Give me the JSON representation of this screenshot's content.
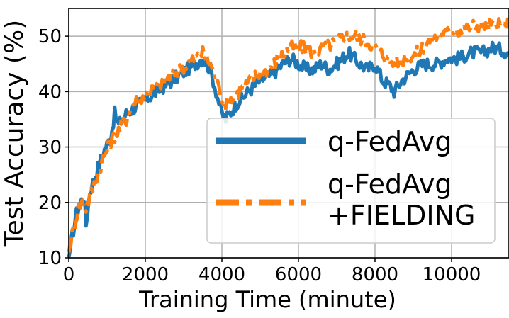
{
  "chart_data": {
    "type": "line",
    "xlabel": "Training Time (minute)",
    "ylabel": "Test Accuracy (%)",
    "xlim": [
      0,
      11500
    ],
    "ylim": [
      10,
      55
    ],
    "xticks": [
      0,
      2000,
      4000,
      6000,
      8000,
      10000
    ],
    "yticks": [
      10,
      20,
      30,
      40,
      50
    ],
    "xtick_labels": [
      "0",
      "2000",
      "4000",
      "6000",
      "8000",
      "10000"
    ],
    "ytick_labels": [
      "10",
      "20",
      "30",
      "40",
      "50"
    ],
    "grid": true,
    "legend_position": "center-right",
    "series": [
      {
        "name": "q-FedAvg",
        "color": "#1f77b4",
        "style": "solid",
        "points": [
          [
            0,
            10
          ],
          [
            50,
            12
          ],
          [
            120,
            15
          ],
          [
            200,
            18
          ],
          [
            300,
            20
          ],
          [
            400,
            21
          ],
          [
            450,
            16
          ],
          [
            550,
            22
          ],
          [
            700,
            25
          ],
          [
            900,
            29
          ],
          [
            1100,
            32
          ],
          [
            1200,
            36
          ],
          [
            1300,
            34
          ],
          [
            1500,
            36
          ],
          [
            1700,
            37
          ],
          [
            1900,
            38
          ],
          [
            2100,
            39
          ],
          [
            2300,
            40
          ],
          [
            2500,
            41
          ],
          [
            2700,
            42
          ],
          [
            2900,
            43
          ],
          [
            3100,
            44
          ],
          [
            3300,
            45
          ],
          [
            3500,
            46
          ],
          [
            3700,
            44
          ],
          [
            3850,
            40
          ],
          [
            4000,
            36
          ],
          [
            4100,
            35
          ],
          [
            4200,
            36
          ],
          [
            4400,
            38
          ],
          [
            4700,
            40
          ],
          [
            5000,
            42
          ],
          [
            5300,
            43
          ],
          [
            5600,
            45
          ],
          [
            5800,
            46
          ],
          [
            6000,
            45
          ],
          [
            6200,
            44
          ],
          [
            6400,
            44
          ],
          [
            6600,
            45
          ],
          [
            6800,
            44
          ],
          [
            7000,
            45
          ],
          [
            7300,
            47
          ],
          [
            7600,
            45
          ],
          [
            7800,
            44
          ],
          [
            8000,
            45
          ],
          [
            8200,
            42
          ],
          [
            8400,
            41
          ],
          [
            8500,
            40
          ],
          [
            8700,
            42
          ],
          [
            9000,
            44
          ],
          [
            9300,
            45
          ],
          [
            9600,
            45
          ],
          [
            9900,
            46
          ],
          [
            10200,
            46
          ],
          [
            10500,
            47
          ],
          [
            10800,
            47
          ],
          [
            11100,
            48
          ],
          [
            11500,
            47
          ]
        ]
      },
      {
        "name": "q-FedAvg\n+FIELDING",
        "color": "#ff7f0e",
        "style": "dashdot",
        "points": [
          [
            0,
            11
          ],
          [
            50,
            13
          ],
          [
            150,
            16
          ],
          [
            250,
            19
          ],
          [
            350,
            20
          ],
          [
            450,
            19
          ],
          [
            550,
            21
          ],
          [
            700,
            24
          ],
          [
            900,
            28
          ],
          [
            1100,
            31
          ],
          [
            1300,
            33
          ],
          [
            1500,
            35
          ],
          [
            1700,
            38
          ],
          [
            1900,
            39
          ],
          [
            2100,
            40
          ],
          [
            2300,
            41
          ],
          [
            2500,
            42
          ],
          [
            2700,
            43
          ],
          [
            2900,
            44
          ],
          [
            3100,
            45
          ],
          [
            3300,
            46
          ],
          [
            3500,
            47
          ],
          [
            3700,
            45
          ],
          [
            3850,
            42
          ],
          [
            4000,
            39
          ],
          [
            4100,
            38
          ],
          [
            4300,
            39
          ],
          [
            4600,
            41
          ],
          [
            4900,
            43
          ],
          [
            5200,
            44
          ],
          [
            5500,
            46
          ],
          [
            5800,
            48
          ],
          [
            6100,
            48
          ],
          [
            6400,
            47
          ],
          [
            6700,
            48
          ],
          [
            7000,
            49
          ],
          [
            7200,
            50
          ],
          [
            7500,
            50
          ],
          [
            7800,
            49
          ],
          [
            8000,
            48
          ],
          [
            8300,
            46
          ],
          [
            8500,
            45
          ],
          [
            8800,
            46
          ],
          [
            9100,
            47
          ],
          [
            9400,
            49
          ],
          [
            9700,
            50
          ],
          [
            10000,
            51
          ],
          [
            10300,
            51
          ],
          [
            10600,
            52
          ],
          [
            10900,
            52
          ],
          [
            11200,
            52
          ],
          [
            11500,
            52
          ]
        ]
      }
    ]
  }
}
